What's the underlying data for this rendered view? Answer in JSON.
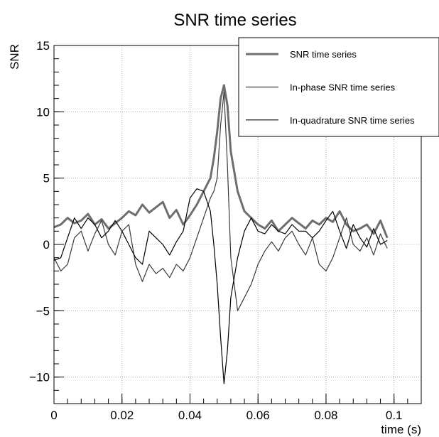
{
  "chart_data": {
    "type": "line",
    "title": "SNR time series",
    "xlabel": "time (s)",
    "ylabel": "SNR",
    "xlim": [
      0,
      0.108
    ],
    "ylim": [
      -12,
      15
    ],
    "xticks": [
      0,
      0.02,
      0.04,
      0.06,
      0.08,
      0.1
    ],
    "xtick_labels": [
      "0",
      "0.02",
      "0.04",
      "0.06",
      "0.08",
      "0.1"
    ],
    "yticks": [
      -10,
      -5,
      0,
      5,
      10,
      15
    ],
    "ytick_labels": [
      "−10",
      "−5",
      "0",
      "5",
      "10",
      "15"
    ],
    "grid": true,
    "legend_position": "top-right",
    "series": [
      {
        "name": "SNR time series",
        "color": "#6e6e6e",
        "line_width": 3,
        "x": [
          0,
          0.002,
          0.004,
          0.006,
          0.008,
          0.01,
          0.012,
          0.014,
          0.016,
          0.018,
          0.02,
          0.022,
          0.024,
          0.026,
          0.028,
          0.03,
          0.032,
          0.034,
          0.036,
          0.038,
          0.04,
          0.042,
          0.044,
          0.046,
          0.047,
          0.048,
          0.049,
          0.05,
          0.051,
          0.052,
          0.054,
          0.056,
          0.058,
          0.06,
          0.062,
          0.064,
          0.066,
          0.068,
          0.07,
          0.072,
          0.074,
          0.076,
          0.078,
          0.08,
          0.082,
          0.084,
          0.086,
          0.088,
          0.09,
          0.092,
          0.094,
          0.096,
          0.098
        ],
        "y": [
          1.3,
          1.5,
          2.0,
          1.6,
          1.8,
          2.3,
          1.5,
          1.9,
          1.2,
          1.6,
          2.0,
          2.5,
          2.2,
          3.0,
          2.4,
          2.8,
          3.2,
          2.0,
          2.6,
          1.5,
          2.2,
          3.0,
          4.0,
          5.0,
          6.5,
          8.5,
          11.0,
          12.0,
          10.5,
          7.0,
          4.0,
          2.5,
          2.0,
          1.5,
          1.2,
          1.8,
          1.0,
          1.5,
          2.0,
          1.6,
          1.2,
          1.8,
          1.5,
          2.0,
          1.7,
          2.5,
          1.5,
          1.0,
          1.2,
          1.5,
          0.8,
          1.8,
          0.5
        ]
      },
      {
        "name": "In-phase SNR time series",
        "color": "#3a3a3a",
        "line_width": 1.2,
        "x": [
          0,
          0.002,
          0.004,
          0.006,
          0.008,
          0.01,
          0.012,
          0.014,
          0.016,
          0.018,
          0.02,
          0.022,
          0.024,
          0.026,
          0.028,
          0.03,
          0.032,
          0.034,
          0.036,
          0.038,
          0.04,
          0.042,
          0.044,
          0.046,
          0.047,
          0.048,
          0.049,
          0.05,
          0.051,
          0.052,
          0.054,
          0.056,
          0.058,
          0.06,
          0.062,
          0.064,
          0.066,
          0.068,
          0.07,
          0.072,
          0.074,
          0.076,
          0.078,
          0.08,
          0.082,
          0.084,
          0.086,
          0.088,
          0.09,
          0.092,
          0.094,
          0.096,
          0.098
        ],
        "y": [
          -1.0,
          -2.0,
          -1.5,
          0.5,
          1.0,
          -0.5,
          0.8,
          1.8,
          0.0,
          -0.8,
          1.0,
          1.5,
          -1.5,
          -2.8,
          -1.5,
          -2.2,
          -1.8,
          -2.5,
          -1.5,
          -2.0,
          -1.0,
          0.5,
          2.0,
          3.5,
          4.0,
          5.0,
          9.0,
          11.5,
          6.0,
          -1.0,
          -5.0,
          -4.0,
          -3.0,
          -1.5,
          -0.5,
          0.2,
          -0.5,
          0.5,
          1.0,
          0.0,
          -0.8,
          0.5,
          -1.5,
          -2.0,
          -1.0,
          0.5,
          2.0,
          0.0,
          -0.5,
          0.5,
          -0.8,
          0.8,
          -0.3
        ]
      },
      {
        "name": "In-quadrature SNR time series",
        "color": "#000000",
        "line_width": 1.2,
        "x": [
          0,
          0.002,
          0.004,
          0.006,
          0.008,
          0.01,
          0.012,
          0.014,
          0.016,
          0.018,
          0.02,
          0.022,
          0.024,
          0.026,
          0.028,
          0.03,
          0.032,
          0.034,
          0.036,
          0.038,
          0.04,
          0.042,
          0.044,
          0.046,
          0.047,
          0.048,
          0.049,
          0.05,
          0.051,
          0.052,
          0.054,
          0.056,
          0.058,
          0.06,
          0.062,
          0.064,
          0.066,
          0.068,
          0.07,
          0.072,
          0.074,
          0.076,
          0.078,
          0.08,
          0.082,
          0.084,
          0.086,
          0.088,
          0.09,
          0.092,
          0.094,
          0.096,
          0.098
        ],
        "y": [
          -1.2,
          -1.0,
          0.5,
          2.0,
          1.2,
          2.0,
          1.5,
          0.5,
          1.0,
          1.8,
          1.0,
          0.0,
          -1.0,
          -1.5,
          1.0,
          0.5,
          0.0,
          -0.8,
          0.2,
          1.0,
          3.5,
          4.2,
          4.0,
          2.5,
          0.0,
          -3.0,
          -7.0,
          -10.5,
          -8.0,
          -4.0,
          -1.0,
          1.0,
          2.0,
          1.0,
          0.8,
          1.5,
          1.0,
          0.8,
          1.5,
          1.0,
          1.0,
          0.5,
          1.0,
          1.8,
          2.5,
          1.0,
          -0.3,
          1.5,
          0.5,
          -0.2,
          1.2,
          0.0,
          0.3
        ]
      }
    ]
  }
}
